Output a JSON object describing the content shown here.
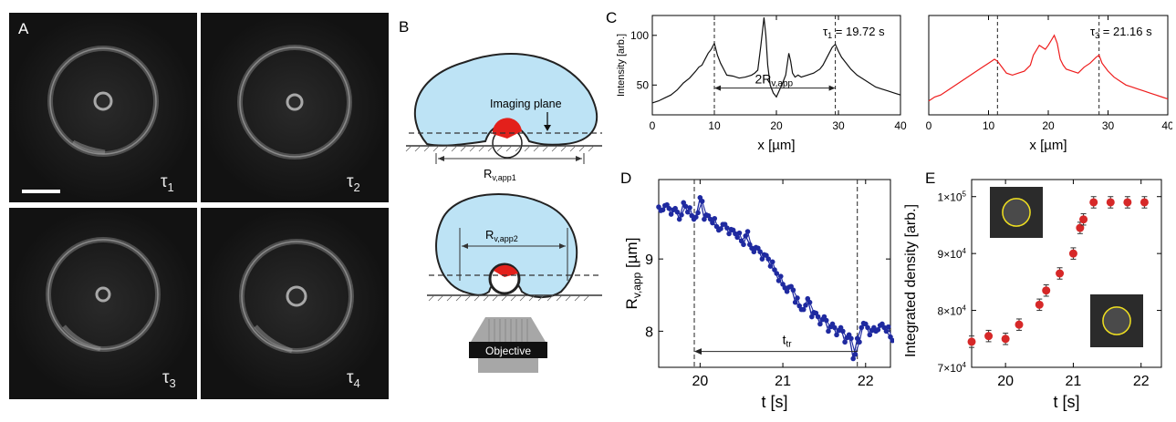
{
  "panels": {
    "A": {
      "letter": "A",
      "labels": [
        {
          "t": "τ",
          "sub": "1"
        },
        {
          "t": "τ",
          "sub": "2"
        },
        {
          "t": "τ",
          "sub": "3"
        },
        {
          "t": "τ",
          "sub": "4"
        }
      ]
    },
    "B": {
      "letter": "B",
      "imaging_plane": "Imaging plane",
      "r1": {
        "main": "R",
        "sub": "v,app1"
      },
      "r2": {
        "main": "R",
        "sub": "v,app2"
      },
      "objective": "Objective"
    },
    "C": {
      "letter": "C"
    },
    "D": {
      "letter": "D"
    },
    "E": {
      "letter": "E"
    }
  },
  "colors": {
    "vesicle_fill": "#bde3f5",
    "particle_red": "#e3201b",
    "series_black": "#111111",
    "series_red": "#ee1c1c",
    "series_blue": "#1f2aa0",
    "marker_red": "#d62828"
  },
  "chart_data": [
    {
      "id": "C-left",
      "type": "line",
      "xlabel": "x [µm]",
      "ylabel": "Intensity [arb.]",
      "xlim": [
        0,
        40
      ],
      "ylim": [
        20,
        120
      ],
      "xticks": [
        "0",
        "10",
        "20",
        "30",
        "40"
      ],
      "yticks": [
        "50",
        "100"
      ],
      "annotation": {
        "text": "τ",
        "sub": "1",
        "rest": " = 19.72 s"
      },
      "arrow_label": {
        "main": "2R",
        "sub": "v,app"
      },
      "vlines": [
        10,
        29.5
      ],
      "series": [
        {
          "color": "#111111",
          "x": [
            0,
            1,
            2,
            3,
            4,
            5,
            6,
            7,
            7.5,
            8,
            8.5,
            9,
            9.5,
            10,
            10.5,
            11,
            11.5,
            12,
            13,
            14,
            15,
            16,
            16.5,
            17,
            17.5,
            18,
            18.3,
            18.6,
            19,
            19.5,
            20,
            20.5,
            21,
            21.5,
            22,
            22.3,
            22.6,
            23,
            23.5,
            24,
            25,
            26,
            27,
            27.5,
            28,
            28.5,
            29,
            29.5,
            30,
            30.5,
            31,
            31.5,
            32,
            33,
            34,
            35,
            36,
            37,
            38,
            39,
            40
          ],
          "y": [
            32,
            34,
            37,
            40,
            45,
            52,
            57,
            64,
            68,
            70,
            76,
            82,
            86,
            92,
            80,
            72,
            66,
            60,
            59,
            57,
            58,
            60,
            62,
            65,
            90,
            118,
            100,
            70,
            50,
            42,
            38,
            45,
            52,
            60,
            82,
            74,
            62,
            58,
            60,
            58,
            60,
            62,
            66,
            70,
            76,
            82,
            88,
            91,
            84,
            78,
            74,
            70,
            66,
            60,
            56,
            52,
            48,
            46,
            44,
            42,
            40
          ]
        }
      ]
    },
    {
      "id": "C-right",
      "type": "line",
      "xlabel": "x [µm]",
      "ylabel": "",
      "xlim": [
        0,
        40
      ],
      "ylim": [
        20,
        120
      ],
      "xticks": [
        "0",
        "10",
        "20",
        "30",
        "40"
      ],
      "annotation": {
        "text": "τ",
        "sub": "3",
        "rest": " = 21.16 s"
      },
      "vlines": [
        11.5,
        28.5
      ],
      "series": [
        {
          "color": "#ee1c1c",
          "x": [
            0,
            1,
            2,
            3,
            4,
            5,
            6,
            7,
            8,
            9,
            10,
            11,
            11.5,
            12,
            13,
            14,
            15,
            16,
            17,
            17.5,
            18,
            18.5,
            19,
            19.5,
            20,
            20.5,
            21,
            21.5,
            22,
            22.5,
            23,
            24,
            25,
            26,
            27,
            28,
            28.5,
            29,
            30,
            31,
            32,
            33,
            34,
            35,
            36,
            37,
            38,
            39,
            40
          ],
          "y": [
            34,
            38,
            40,
            44,
            48,
            52,
            56,
            60,
            64,
            68,
            72,
            76,
            74,
            70,
            62,
            60,
            62,
            64,
            70,
            80,
            85,
            90,
            88,
            86,
            90,
            95,
            100,
            92,
            76,
            70,
            66,
            64,
            62,
            68,
            72,
            78,
            80,
            72,
            64,
            58,
            54,
            50,
            48,
            46,
            44,
            42,
            40,
            38,
            36
          ]
        }
      ]
    },
    {
      "id": "D",
      "type": "line",
      "xlabel": "t [s]",
      "ylabel": {
        "main": "R",
        "sub": "v,app",
        "rest": " [µm]"
      },
      "xlim": [
        19.5,
        22.3
      ],
      "ylim": [
        7.5,
        10.1
      ],
      "xticks": [
        "20",
        "21",
        "22"
      ],
      "yticks": [
        "8",
        "9"
      ],
      "arrow_label": {
        "main": "t",
        "sub": "tr"
      },
      "vlines": [
        19.93,
        21.9
      ],
      "series": [
        {
          "color": "#1f2aa0",
          "x": [
            19.5,
            19.55,
            19.6,
            19.65,
            19.7,
            19.75,
            19.8,
            19.85,
            19.9,
            19.95,
            20.0,
            20.05,
            20.1,
            20.15,
            20.2,
            20.25,
            20.3,
            20.35,
            20.4,
            20.45,
            20.5,
            20.55,
            20.6,
            20.65,
            20.7,
            20.75,
            20.8,
            20.85,
            20.9,
            20.95,
            21.0,
            21.05,
            21.1,
            21.15,
            21.2,
            21.25,
            21.3,
            21.35,
            21.4,
            21.45,
            21.5,
            21.55,
            21.6,
            21.65,
            21.7,
            21.75,
            21.8,
            21.85,
            21.9,
            21.95,
            22.0,
            22.05,
            22.1,
            22.15,
            22.2,
            22.25,
            22.3
          ],
          "y": [
            9.72,
            9.68,
            9.75,
            9.62,
            9.7,
            9.55,
            9.78,
            9.65,
            9.6,
            9.58,
            9.85,
            9.55,
            9.6,
            9.5,
            9.45,
            9.42,
            9.48,
            9.35,
            9.4,
            9.3,
            9.25,
            9.32,
            9.2,
            9.1,
            9.15,
            9.0,
            9.05,
            8.9,
            8.85,
            8.7,
            8.65,
            8.55,
            8.62,
            8.4,
            8.35,
            8.3,
            8.45,
            8.2,
            8.25,
            8.1,
            8.2,
            8.0,
            8.1,
            7.95,
            8.05,
            7.85,
            7.95,
            7.62,
            7.9,
            8.05,
            8.1,
            7.95,
            8.05,
            8.02,
            8.1,
            8.0,
            7.92
          ]
        }
      ]
    },
    {
      "id": "E",
      "type": "scatter",
      "xlabel": "t [s]",
      "ylabel": "Integrated density [arb.]",
      "xlim": [
        19.5,
        22.3
      ],
      "ylim": [
        70000,
        103000
      ],
      "xticks": [
        "20",
        "21",
        "22"
      ],
      "yticks": [
        {
          "m": "7×10",
          "e": "4",
          "v": 70000
        },
        {
          "m": "8×10",
          "e": "4",
          "v": 80000
        },
        {
          "m": "9×10",
          "e": "4",
          "v": 90000
        },
        {
          "m": "1×10",
          "e": "5",
          "v": 100000
        }
      ],
      "series": [
        {
          "color": "#d62828",
          "x": [
            19.5,
            19.75,
            20.0,
            20.2,
            20.5,
            20.6,
            20.8,
            21.0,
            21.1,
            21.15,
            21.3,
            21.55,
            21.8,
            22.05
          ],
          "y": [
            74500,
            75500,
            75000,
            77500,
            81000,
            83500,
            86500,
            90000,
            94500,
            96000,
            99000,
            99000,
            99000,
            99000
          ],
          "err": [
            1000,
            1000,
            1000,
            1000,
            1000,
            1000,
            1000,
            1000,
            1000,
            1000,
            1000,
            1000,
            1000,
            1000
          ]
        }
      ]
    }
  ]
}
